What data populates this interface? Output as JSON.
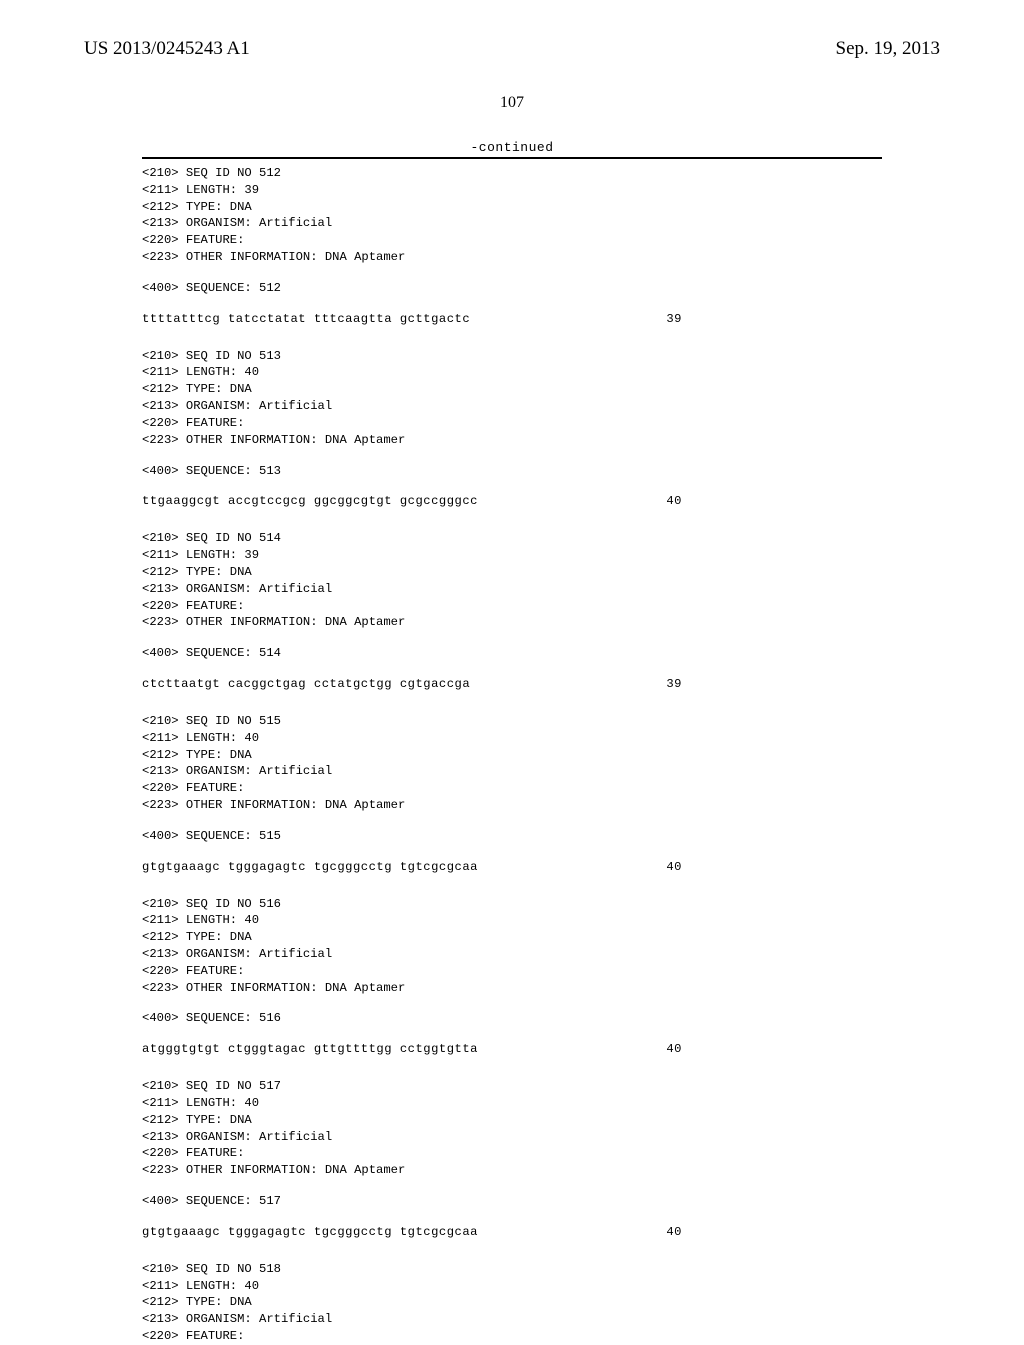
{
  "header": {
    "publication_number": "US 2013/0245243 A1",
    "publication_date": "Sep. 19, 2013"
  },
  "page_number": "107",
  "continued_label": "-continued",
  "records": [
    {
      "seq_id": "<210> SEQ ID NO 512",
      "length": "<211> LENGTH: 39",
      "type": "<212> TYPE: DNA",
      "organism": "<213> ORGANISM: Artificial",
      "feature": "<220> FEATURE:",
      "other": "<223> OTHER INFORMATION: DNA Aptamer",
      "seq_label": "<400> SEQUENCE: 512",
      "sequence": "ttttatttcg tatcctatat tttcaagtta gcttgactc",
      "position": "39"
    },
    {
      "seq_id": "<210> SEQ ID NO 513",
      "length": "<211> LENGTH: 40",
      "type": "<212> TYPE: DNA",
      "organism": "<213> ORGANISM: Artificial",
      "feature": "<220> FEATURE:",
      "other": "<223> OTHER INFORMATION: DNA Aptamer",
      "seq_label": "<400> SEQUENCE: 513",
      "sequence": "ttgaaggcgt accgtccgcg ggcggcgtgt gcgccgggcc",
      "position": "40"
    },
    {
      "seq_id": "<210> SEQ ID NO 514",
      "length": "<211> LENGTH: 39",
      "type": "<212> TYPE: DNA",
      "organism": "<213> ORGANISM: Artificial",
      "feature": "<220> FEATURE:",
      "other": "<223> OTHER INFORMATION: DNA Aptamer",
      "seq_label": "<400> SEQUENCE: 514",
      "sequence": "ctcttaatgt cacggctgag cctatgctgg cgtgaccga",
      "position": "39"
    },
    {
      "seq_id": "<210> SEQ ID NO 515",
      "length": "<211> LENGTH: 40",
      "type": "<212> TYPE: DNA",
      "organism": "<213> ORGANISM: Artificial",
      "feature": "<220> FEATURE:",
      "other": "<223> OTHER INFORMATION: DNA Aptamer",
      "seq_label": "<400> SEQUENCE: 515",
      "sequence": "gtgtgaaagc tgggagagtc tgcgggcctg tgtcgcgcaa",
      "position": "40"
    },
    {
      "seq_id": "<210> SEQ ID NO 516",
      "length": "<211> LENGTH: 40",
      "type": "<212> TYPE: DNA",
      "organism": "<213> ORGANISM: Artificial",
      "feature": "<220> FEATURE:",
      "other": "<223> OTHER INFORMATION: DNA Aptamer",
      "seq_label": "<400> SEQUENCE: 516",
      "sequence": "atgggtgtgt ctgggtagac gttgttttgg cctggtgtta",
      "position": "40"
    },
    {
      "seq_id": "<210> SEQ ID NO 517",
      "length": "<211> LENGTH: 40",
      "type": "<212> TYPE: DNA",
      "organism": "<213> ORGANISM: Artificial",
      "feature": "<220> FEATURE:",
      "other": "<223> OTHER INFORMATION: DNA Aptamer",
      "seq_label": "<400> SEQUENCE: 517",
      "sequence": "gtgtgaaagc tgggagagtc tgcgggcctg tgtcgcgcaa",
      "position": "40"
    }
  ],
  "partial_record": {
    "seq_id": "<210> SEQ ID NO 518",
    "length": "<211> LENGTH: 40",
    "type": "<212> TYPE: DNA",
    "organism": "<213> ORGANISM: Artificial",
    "feature": "<220> FEATURE:"
  }
}
